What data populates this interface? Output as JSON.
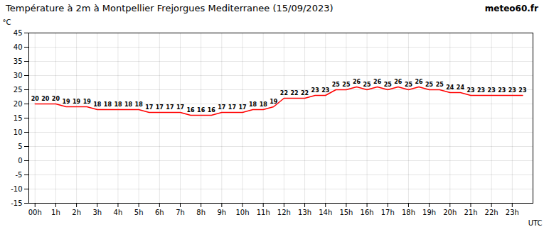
{
  "chart_data": {
    "type": "line",
    "title": "Température à 2m à Montpellier Frejorgues Mediterranee (15/09/2023)",
    "xlabel": "UTC",
    "ylabel": "°C",
    "annotations": [
      "meteo60.fr"
    ],
    "x": [
      0,
      0.5,
      1,
      1.5,
      2,
      2.5,
      3,
      3.5,
      4,
      4.5,
      5,
      5.5,
      6,
      6.5,
      7,
      7.5,
      8,
      8.5,
      9,
      9.5,
      10,
      10.5,
      11,
      11.5,
      12,
      12.5,
      13,
      13.5,
      14,
      14.5,
      15,
      15.5,
      16,
      16.5,
      17,
      17.5,
      18,
      18.5,
      19,
      19.5,
      20,
      20.5,
      21,
      21.5,
      22,
      22.5,
      23,
      23.5
    ],
    "values": [
      20,
      20,
      20,
      19,
      19,
      19,
      18,
      18,
      18,
      18,
      18,
      17,
      17,
      17,
      17,
      16,
      16,
      16,
      17,
      17,
      17,
      18,
      18,
      19,
      22,
      22,
      22,
      23,
      23,
      25,
      25,
      26,
      25,
      26,
      25,
      26,
      25,
      26,
      25,
      25,
      24,
      24,
      23,
      23,
      23,
      23,
      23,
      23
    ],
    "color": "#ff0000",
    "xlim": [
      -0.3,
      24.0
    ],
    "xticks": [
      {
        "value": 0,
        "label": "00h"
      },
      {
        "value": 1,
        "label": "1h"
      },
      {
        "value": 2,
        "label": "2h"
      },
      {
        "value": 3,
        "label": "3h"
      },
      {
        "value": 4,
        "label": "4h"
      },
      {
        "value": 5,
        "label": "5h"
      },
      {
        "value": 6,
        "label": "6h"
      },
      {
        "value": 7,
        "label": "7h"
      },
      {
        "value": 8,
        "label": "8h"
      },
      {
        "value": 9,
        "label": "9h"
      },
      {
        "value": 10,
        "label": "10h"
      },
      {
        "value": 11,
        "label": "11h"
      },
      {
        "value": 12,
        "label": "12h"
      },
      {
        "value": 13,
        "label": "13h"
      },
      {
        "value": 14,
        "label": "14h"
      },
      {
        "value": 15,
        "label": "15h"
      },
      {
        "value": 16,
        "label": "16h"
      },
      {
        "value": 17,
        "label": "17h"
      },
      {
        "value": 18,
        "label": "18h"
      },
      {
        "value": 19,
        "label": "19h"
      },
      {
        "value": 20,
        "label": "20h"
      },
      {
        "value": 21,
        "label": "21h"
      },
      {
        "value": 22,
        "label": "22h"
      },
      {
        "value": 23,
        "label": "23h"
      }
    ],
    "ylim": [
      -15,
      45
    ],
    "yticks": [
      -15,
      -10,
      -5,
      0,
      5,
      10,
      15,
      20,
      25,
      30,
      35,
      40,
      45
    ],
    "grid": true,
    "data_labels": true
  }
}
